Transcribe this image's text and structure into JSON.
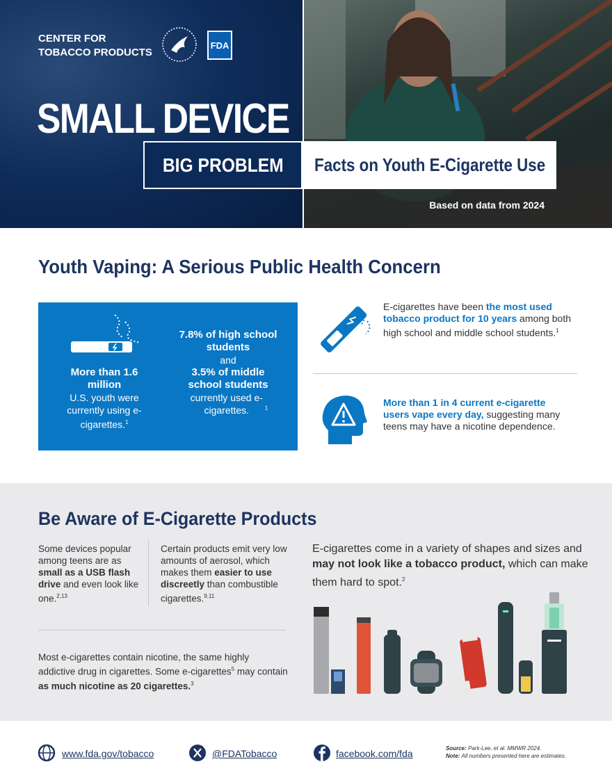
{
  "header": {
    "org_lines": [
      "CENTER FOR",
      "TOBACCO PRODUCTS"
    ],
    "logo": "FDA",
    "title": "SMALL DEVICE",
    "subtitle": "BIG PROBLEM",
    "tagline": "Facts on Youth E-Cigarette Use",
    "data_note": "Based on data from 2024"
  },
  "concern": {
    "title": "Youth Vaping: A Serious Public Health Concern",
    "stat1": {
      "highlight": "More than 1.6 million",
      "text": "U.S. youth were currently using e-cigarettes.",
      "footnote": "1"
    },
    "stat2": {
      "highlight1": "7.8% of high school students",
      "joiner": "and",
      "highlight2": "3.5% of middle school students",
      "text": "currently used e-cigarettes.",
      "footnote": "1"
    },
    "fact1": {
      "before": "E-cigarettes have been ",
      "highlight": "the most used tobacco product for 10 years",
      "after": " among both high school and middle school students.",
      "footnote": "1"
    },
    "fact2": {
      "highlight": "More than 1 in 4 current e-cigarette users vape every day,",
      "after": " suggesting many teens may have a nicotine dependence."
    }
  },
  "aware": {
    "title": "Be Aware of E-Cigarette Products",
    "col1": {
      "before": "Some devices popular among teens are as ",
      "highlight": "small as a USB flash drive",
      "after": " and even look like one.",
      "footnote": "2,13"
    },
    "col2": {
      "before": "Certain products emit very low amounts of aerosol, which makes them ",
      "highlight": "easier to use discreetly",
      "after": " than combustible cigarettes.",
      "footnote": "9,11"
    },
    "nicotine": {
      "before": "Most e-cigarettes contain nicotine, the same highly addictive drug in cigarettes. Some e-cigarettes",
      "footnote1": "5",
      "middle": " may contain ",
      "highlight": "as much nicotine as 20 cigarettes.",
      "footnote2": "3"
    },
    "variety": {
      "before": "E-cigarettes come in a variety of shapes and sizes and ",
      "highlight": "may not look like a tobacco product,",
      "after": " which can make them hard to spot.",
      "footnote": "2"
    }
  },
  "footer": {
    "links": [
      "www.fda.gov/tobacco",
      "@FDATobacco",
      "facebook.com/fda"
    ],
    "source_label": "Source:",
    "source": " Park-Lee, et al. MMWR 2024.",
    "note_label": "Note:",
    "note": " All numbers presented here are estimates."
  }
}
